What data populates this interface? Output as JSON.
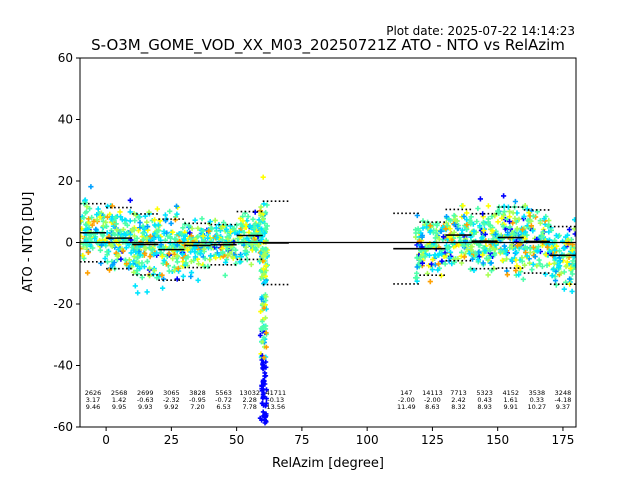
{
  "chart_data": {
    "type": "scatter",
    "title": "S-O3M_GOME_VOD_XX_M03_20250721Z ATO - NTO vs RelAzim",
    "subtitle": "Plot date: 2025-07-22 14:14:23",
    "xlabel": "RelAzim [degree]",
    "ylabel": "ATO - NTO [DU]",
    "xlim": [
      -10,
      180
    ],
    "ylim": [
      -60,
      60
    ],
    "xticks": [
      0,
      25,
      50,
      75,
      100,
      125,
      150,
      175
    ],
    "yticks": [
      -60,
      -40,
      -20,
      0,
      20,
      40,
      60
    ],
    "grid": false,
    "zero_line": 0,
    "bins": [
      {
        "center": -5,
        "count": "2626",
        "mean": 3.17,
        "mean_label": "3.17",
        "std": 9.46,
        "std_label": "9.46"
      },
      {
        "center": 5,
        "count": "2568",
        "mean": 1.42,
        "mean_label": "1.42",
        "std": 9.95,
        "std_label": "9.95"
      },
      {
        "center": 15,
        "count": "2699",
        "mean": -0.63,
        "mean_label": "-0.63",
        "std": 9.93,
        "std_label": "9.93"
      },
      {
        "center": 25,
        "count": "3065",
        "mean": -2.32,
        "mean_label": "-2.32",
        "std": 9.92,
        "std_label": "9.92"
      },
      {
        "center": 35,
        "count": "3828",
        "mean": -0.95,
        "mean_label": "-0.95",
        "std": 7.2,
        "std_label": "7.20"
      },
      {
        "center": 45,
        "count": "5563",
        "mean": -0.72,
        "mean_label": "-0.72",
        "std": 6.53,
        "std_label": "6.53"
      },
      {
        "center": 55,
        "count": "13032",
        "mean": 2.28,
        "mean_label": "2.28",
        "std": 7.78,
        "std_label": "7.78"
      },
      {
        "center": 65,
        "count": "41711",
        "mean": -0.13,
        "mean_label": "-0.13",
        "std": 13.56,
        "std_label": "13.56"
      },
      {
        "center": 115,
        "count": "147",
        "mean": -2.0,
        "mean_label": "-2.00",
        "std": 11.49,
        "std_label": "11.49"
      },
      {
        "center": 125,
        "count": "14113",
        "mean": -2.0,
        "mean_label": "-2.00",
        "std": 8.63,
        "std_label": "8.63"
      },
      {
        "center": 135,
        "count": "7713",
        "mean": 2.42,
        "mean_label": "2.42",
        "std": 8.32,
        "std_label": "8.32"
      },
      {
        "center": 145,
        "count": "5323",
        "mean": 0.43,
        "mean_label": "0.43",
        "std": 8.93,
        "std_label": "8.93"
      },
      {
        "center": 155,
        "count": "4152",
        "mean": 1.61,
        "mean_label": "1.61",
        "std": 9.91,
        "std_label": "9.91"
      },
      {
        "center": 165,
        "count": "3538",
        "mean": 0.33,
        "mean_label": "0.33",
        "std": 10.27,
        "std_label": "10.27"
      },
      {
        "center": 175,
        "count": "3248",
        "mean": -4.18,
        "mean_label": "-4.18",
        "std": 9.37,
        "std_label": "9.37"
      }
    ],
    "colormap": [
      "#0000ff",
      "#00a0ff",
      "#00e5ff",
      "#4dffaa",
      "#aaff55",
      "#ffff00",
      "#ffa000"
    ],
    "mean_line_color": "#000000",
    "std_marker_color": "#000000"
  }
}
